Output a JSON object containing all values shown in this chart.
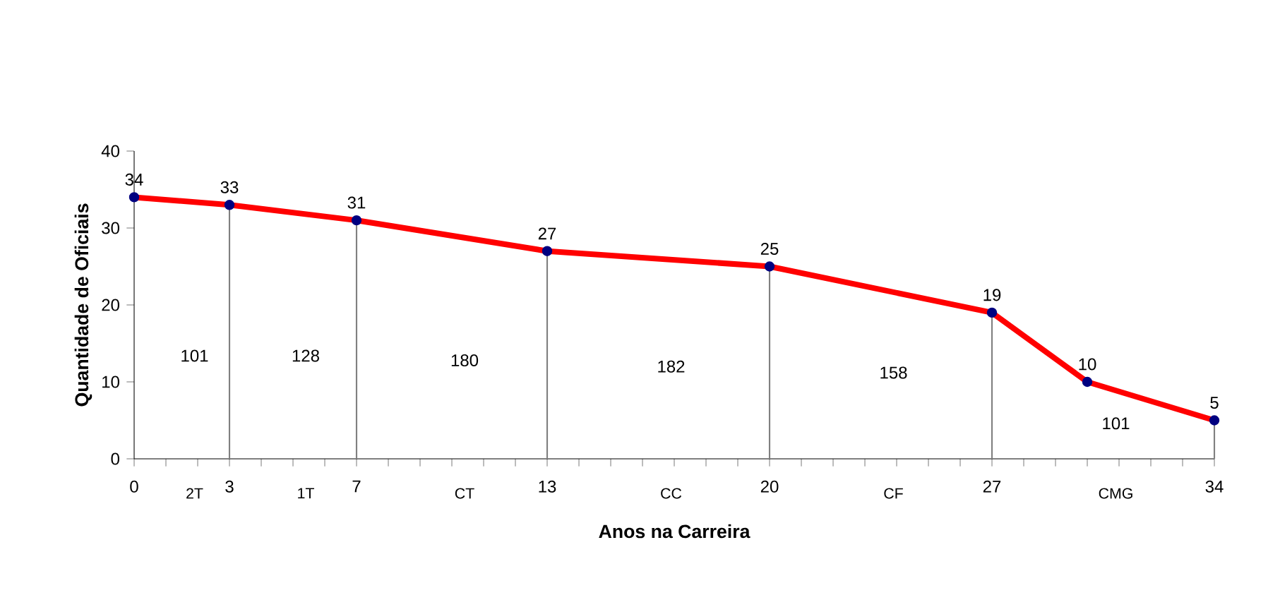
{
  "chart_data": {
    "type": "line",
    "xlabel": "Anos na Carreira",
    "ylabel": "Quantidade de Oficiais",
    "xlim": [
      0,
      34
    ],
    "ylim": [
      0,
      40
    ],
    "yticks": [
      0,
      10,
      20,
      30,
      40
    ],
    "xticks": [
      0,
      {
        "value": 1,
        "label": null
      },
      {
        "value": 2,
        "label": null
      },
      3,
      {
        "value": 4,
        "label": null
      },
      {
        "value": 5,
        "label": null
      },
      {
        "value": 6,
        "label": null
      },
      7,
      {
        "value": 8,
        "label": null
      },
      {
        "value": 9,
        "label": null
      },
      {
        "value": 10,
        "label": null
      },
      {
        "value": 11,
        "label": null
      },
      {
        "value": 12,
        "label": null
      },
      13,
      {
        "value": 14,
        "label": null
      },
      {
        "value": 15,
        "label": null
      },
      {
        "value": 16,
        "label": null
      },
      {
        "value": 17,
        "label": null
      },
      {
        "value": 18,
        "label": null
      },
      {
        "value": 19,
        "label": null
      },
      20,
      {
        "value": 21,
        "label": null
      },
      {
        "value": 22,
        "label": null
      },
      {
        "value": 23,
        "label": null
      },
      {
        "value": 24,
        "label": null
      },
      {
        "value": 25,
        "label": null
      },
      {
        "value": 26,
        "label": null
      },
      27,
      {
        "value": 28,
        "label": null
      },
      {
        "value": 29,
        "label": null
      },
      {
        "value": 30,
        "label": null
      },
      {
        "value": 31,
        "label": null
      },
      {
        "value": 32,
        "label": null
      },
      {
        "value": 33,
        "label": null
      },
      34
    ],
    "series": [
      {
        "color": "#ff0000",
        "x": [
          0,
          3,
          7,
          13,
          20,
          27,
          30,
          34
        ],
        "values": [
          34,
          33,
          31,
          27,
          25,
          19,
          10,
          5
        ]
      }
    ],
    "ref_lines": [
      {
        "axis": "x",
        "value": 3,
        "color": "#808080"
      },
      {
        "axis": "x",
        "value": 7,
        "color": "#808080"
      },
      {
        "axis": "x",
        "value": 13,
        "color": "#808080"
      },
      {
        "axis": "x",
        "value": 20,
        "color": "#808080"
      },
      {
        "axis": "x",
        "value": 27,
        "color": "#808080"
      },
      {
        "axis": "x",
        "value": 34,
        "color": "#808080"
      }
    ],
    "marker": "circle",
    "line_style": "solid",
    "data_labels": true,
    "grid": false,
    "annotations": [
      "101",
      "128",
      "180",
      "182",
      "158",
      "101",
      "2T",
      "1T",
      "CT",
      "CC",
      "CF",
      "CMG"
    ]
  }
}
